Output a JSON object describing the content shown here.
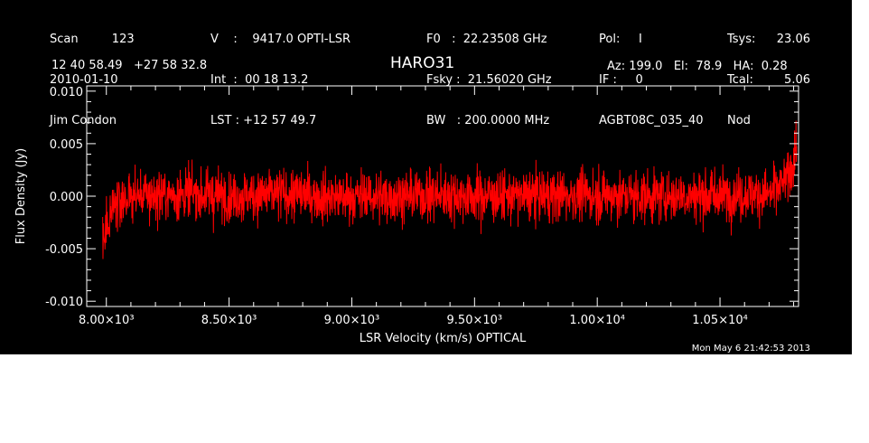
{
  "header": {
    "col1": [
      "Scan         123",
      "2010-01-10",
      "Jim Condon"
    ],
    "col2": [
      "V    :    9417.0 OPTI-LSR",
      "Int  :  00 18 13.2",
      "LST : +12 57 49.7"
    ],
    "col3": [
      "F0   :  22.23508 GHz",
      "Fsky :  21.56020 GHz",
      "BW   : 200.0000 MHz"
    ],
    "col4": [
      "Pol:     I",
      "IF :     0",
      "AGBT08C_035_40"
    ],
    "col5": [
      "Tsys:",
      "Tcal:",
      "Nod"
    ],
    "col6": [
      "23.06",
      "5.06",
      ""
    ],
    "coords": "12 40 58.49   +27 58 32.8",
    "source": "HARO31",
    "pointing": "Az: 199.0   El:  78.9   HA:  0.28",
    "timestamp": "Mon May  6 21:42:53 2013"
  },
  "chart_data": {
    "type": "line",
    "title": "HARO31",
    "xlabel": "LSR Velocity (km/s) OPTICAL",
    "ylabel": "Flux Density (Jy)",
    "xlim": [
      7920,
      10820
    ],
    "ylim": [
      -0.0105,
      0.0105
    ],
    "x_ticks": [
      {
        "value": 8000,
        "label": "8.00×10³"
      },
      {
        "value": 8500,
        "label": "8.50×10³"
      },
      {
        "value": 9000,
        "label": "9.00×10³"
      },
      {
        "value": 9500,
        "label": "9.50×10³"
      },
      {
        "value": 10000,
        "label": "1.00×10⁴"
      },
      {
        "value": 10500,
        "label": "1.05×10⁴"
      }
    ],
    "y_ticks": [
      {
        "value": 0.01,
        "label": "0.010"
      },
      {
        "value": 0.005,
        "label": "0.005"
      },
      {
        "value": 0.0,
        "label": "0.000"
      },
      {
        "value": -0.005,
        "label": "-0.005"
      },
      {
        "value": -0.01,
        "label": "-0.010"
      }
    ],
    "series": [
      {
        "color": "#ff0000",
        "x_start": 7985,
        "x_end": 10812,
        "noise_rms": 0.0022,
        "envelope": [
          [
            7985,
            -0.0045
          ],
          [
            8000,
            -0.003
          ],
          [
            8020,
            -0.001
          ],
          [
            8100,
            0.0
          ],
          [
            8300,
            0.0002
          ],
          [
            8500,
            0.0
          ],
          [
            8700,
            0.0002
          ],
          [
            9000,
            -0.0001
          ],
          [
            9300,
            0.0001
          ],
          [
            9600,
            0.0
          ],
          [
            9900,
            0.0001
          ],
          [
            10200,
            0.0
          ],
          [
            10500,
            0.0001
          ],
          [
            10700,
            0.0002
          ],
          [
            10760,
            0.0012
          ],
          [
            10790,
            0.0025
          ],
          [
            10812,
            0.005
          ]
        ]
      }
    ],
    "grid": false,
    "legend": "none"
  }
}
